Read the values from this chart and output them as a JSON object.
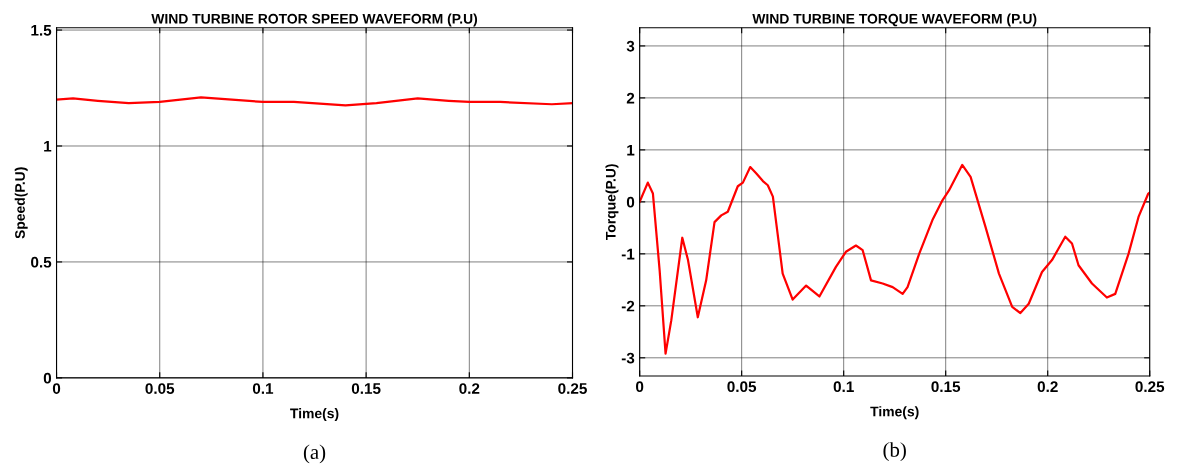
{
  "chart_data": [
    {
      "type": "line",
      "title": "WIND TURBINE ROTOR SPEED WAVEFORM (P.U)",
      "xlabel": "Time(s)",
      "ylabel": "Speed(P.U)",
      "annotations": [
        "(a)"
      ],
      "series": [
        {
          "color": "#ff0000",
          "x": [
            0,
            0.008,
            0.02,
            0.035,
            0.05,
            0.07,
            0.085,
            0.1,
            0.115,
            0.14,
            0.155,
            0.175,
            0.19,
            0.2,
            0.215,
            0.24,
            0.25
          ],
          "values": [
            1.2,
            1.205,
            1.195,
            1.185,
            1.19,
            1.21,
            1.2,
            1.19,
            1.19,
            1.175,
            1.185,
            1.205,
            1.195,
            1.19,
            1.19,
            1.18,
            1.185
          ]
        }
      ],
      "xlim": [
        0,
        0.25
      ],
      "xticks": [
        0,
        0.05,
        0.1,
        0.15,
        0.2,
        0.25
      ],
      "ylim": [
        0,
        1.51
      ],
      "yticks": [
        0,
        0.5,
        1,
        1.5
      ],
      "grid": true,
      "line_style": "solid",
      "marker": "none"
    },
    {
      "type": "line",
      "title": "WIND TURBINE TORQUE WAVEFORM (P.U)",
      "xlabel": "Time(s)",
      "ylabel": "Torque(P.U)",
      "annotations": [
        "(b)"
      ],
      "series": [
        {
          "color": "#ff0000",
          "x": [
            0,
            0.004,
            0.0065,
            0.0098,
            0.0127,
            0.0155,
            0.0209,
            0.0237,
            0.0285,
            0.0326,
            0.0367,
            0.04,
            0.0432,
            0.0481,
            0.0506,
            0.0542,
            0.0571,
            0.0604,
            0.0628,
            0.0653,
            0.0701,
            0.075,
            0.0816,
            0.0881,
            0.0962,
            0.1011,
            0.106,
            0.1093,
            0.1134,
            0.1191,
            0.124,
            0.1289,
            0.1313,
            0.137,
            0.1435,
            0.1484,
            0.1516,
            0.1581,
            0.1622,
            0.1695,
            0.1761,
            0.1826,
            0.1866,
            0.1907,
            0.1972,
            0.2021,
            0.2086,
            0.2119,
            0.2151,
            0.2217,
            0.229,
            0.2331,
            0.2396,
            0.2445,
            0.2493,
            0.25
          ],
          "values": [
            0,
            0.37,
            0.16,
            -1.32,
            -2.92,
            -2.28,
            -0.69,
            -1.12,
            -2.22,
            -1.51,
            -0.39,
            -0.26,
            -0.19,
            0.3,
            0.37,
            0.67,
            0.55,
            0.4,
            0.32,
            0.1,
            -1.38,
            -1.88,
            -1.61,
            -1.82,
            -1.25,
            -0.96,
            -0.84,
            -0.93,
            -1.51,
            -1.57,
            -1.64,
            -1.77,
            -1.64,
            -1.0,
            -0.35,
            0.03,
            0.22,
            0.71,
            0.48,
            -0.48,
            -1.38,
            -2.02,
            -2.14,
            -1.96,
            -1.35,
            -1.12,
            -0.67,
            -0.8,
            -1.22,
            -1.57,
            -1.84,
            -1.77,
            -1.0,
            -0.29,
            0.16,
            0.18
          ]
        }
      ],
      "xlim": [
        0,
        0.25
      ],
      "xticks": [
        0,
        0.05,
        0.1,
        0.15,
        0.2,
        0.25
      ],
      "ylim": [
        -3.35,
        3.35
      ],
      "yticks": [
        -3,
        -2,
        -1,
        0,
        1,
        2,
        3
      ],
      "grid": true,
      "line_style": "solid",
      "marker": "none"
    }
  ]
}
